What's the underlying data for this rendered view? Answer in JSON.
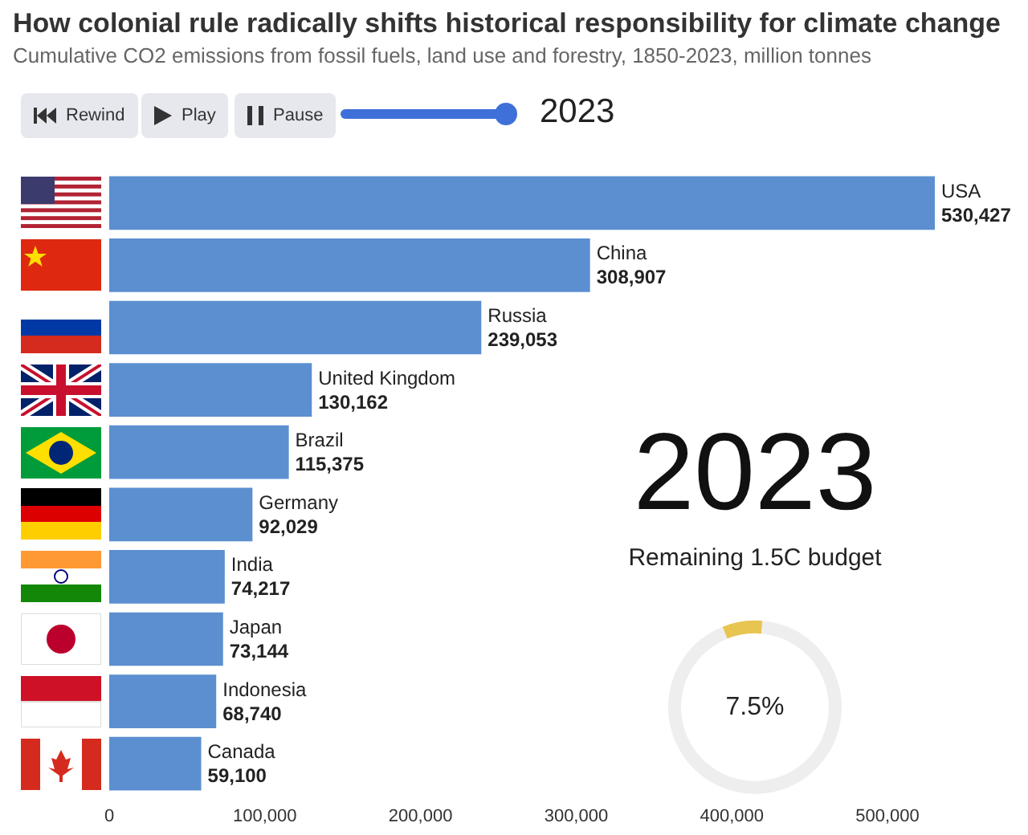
{
  "chart_data": [
    {
      "type": "bar",
      "orientation": "horizontal",
      "title": "How colonial rule radically shifts historical responsibility for climate change",
      "subtitle": "Cumulative CO2 emissions from fossil fuels, land use and forestry, 1850-2023, million tonnes",
      "categories": [
        "USA",
        "China",
        "Russia",
        "United Kingdom",
        "Brazil",
        "Germany",
        "India",
        "Japan",
        "Indonesia",
        "Canada"
      ],
      "values": [
        530427,
        308907,
        239053,
        130162,
        115375,
        92029,
        74217,
        73144,
        68740,
        59100
      ],
      "color": "#5b8fd0",
      "xlim": [
        0,
        530427
      ],
      "xticks": [
        {
          "value": 0,
          "label": "0"
        },
        {
          "value": 100000,
          "label": "100,000"
        },
        {
          "value": 200000,
          "label": "200,000"
        },
        {
          "value": 300000,
          "label": "300,000"
        },
        {
          "value": 400000,
          "label": "400,000"
        },
        {
          "value": 500000,
          "label": "500,000"
        }
      ],
      "tick_labels": "x",
      "value_labels": [
        "530,427",
        "308,907",
        "239,053",
        "130,162",
        "115,375",
        "92,029",
        "74,217",
        "73,144",
        "68,740",
        "59,100"
      ],
      "annotations": [
        "Rewind",
        "Play",
        "Pause",
        "2023",
        "2023"
      ]
    },
    {
      "type": "donut",
      "title": "Remaining 1.5C budget",
      "categories": [
        null,
        null
      ],
      "values": [
        7.5,
        92.5
      ],
      "colors": [
        "#e8c451",
        "#eeeeee"
      ],
      "value_labels": [
        "7.5%",
        null
      ]
    }
  ]
}
